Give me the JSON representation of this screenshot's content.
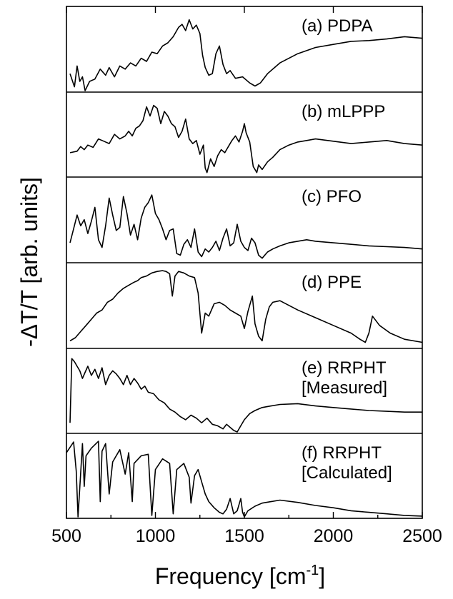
{
  "chart_data": {
    "type": "line",
    "xlabel": "Frequency [cm",
    "xlabel_sup": "-1",
    "xlabel_end": "]",
    "ylabel": "-ΔT/T [arb. units]",
    "xlim": [
      500,
      2500
    ],
    "xticks": [
      "500",
      "1000",
      "1500",
      "2000",
      "2500"
    ],
    "xtick_values": [
      500,
      1000,
      1500,
      2000,
      2500
    ],
    "grid": false,
    "panels": [
      {
        "name": "(a) PDPA",
        "label_lines": [
          "(a) PDPA"
        ],
        "x": [
          520,
          545,
          560,
          575,
          590,
          605,
          630,
          660,
          690,
          720,
          740,
          770,
          800,
          830,
          860,
          890,
          920,
          950,
          980,
          1010,
          1040,
          1070,
          1100,
          1130,
          1150,
          1170,
          1190,
          1210,
          1230,
          1250,
          1265,
          1280,
          1300,
          1320,
          1340,
          1360,
          1380,
          1400,
          1420,
          1450,
          1490,
          1530,
          1560,
          1590,
          1630,
          1700,
          1800,
          1900,
          2000,
          2100,
          2200,
          2300,
          2400,
          2500
        ],
        "y": [
          0.22,
          0.05,
          0.32,
          0.12,
          0.18,
          0.0,
          0.12,
          0.15,
          0.28,
          0.2,
          0.3,
          0.18,
          0.32,
          0.28,
          0.36,
          0.32,
          0.42,
          0.38,
          0.5,
          0.48,
          0.58,
          0.62,
          0.7,
          0.82,
          0.86,
          0.78,
          0.92,
          0.8,
          0.85,
          0.74,
          0.46,
          0.3,
          0.2,
          0.22,
          0.48,
          0.58,
          0.34,
          0.22,
          0.26,
          0.16,
          0.18,
          0.1,
          0.06,
          0.1,
          0.22,
          0.36,
          0.48,
          0.56,
          0.6,
          0.64,
          0.65,
          0.67,
          0.7,
          0.68
        ]
      },
      {
        "name": "(b) mLPPP",
        "label_lines": [
          "(b) mLPPP"
        ],
        "x": [
          520,
          560,
          580,
          600,
          620,
          650,
          680,
          710,
          740,
          770,
          800,
          830,
          850,
          870,
          890,
          910,
          930,
          950,
          970,
          990,
          1010,
          1030,
          1050,
          1070,
          1090,
          1110,
          1130,
          1150,
          1170,
          1190,
          1210,
          1230,
          1250,
          1270,
          1280,
          1290,
          1310,
          1330,
          1350,
          1370,
          1390,
          1410,
          1430,
          1450,
          1470,
          1490,
          1500,
          1510,
          1530,
          1550,
          1570,
          1580,
          1600,
          1630,
          1660,
          1700,
          1750,
          1800,
          1850,
          1900,
          2000,
          2100,
          2200,
          2300,
          2400,
          2500
        ],
        "y": [
          0.3,
          0.32,
          0.38,
          0.34,
          0.4,
          0.37,
          0.48,
          0.45,
          0.42,
          0.54,
          0.48,
          0.52,
          0.58,
          0.52,
          0.62,
          0.65,
          0.72,
          0.9,
          0.78,
          0.92,
          0.88,
          0.68,
          0.84,
          0.78,
          0.68,
          0.64,
          0.5,
          0.58,
          0.74,
          0.48,
          0.42,
          0.46,
          0.28,
          0.4,
          0.1,
          0.04,
          0.22,
          0.12,
          0.26,
          0.34,
          0.3,
          0.38,
          0.46,
          0.52,
          0.44,
          0.58,
          0.68,
          0.56,
          0.44,
          0.12,
          0.04,
          0.14,
          0.08,
          0.18,
          0.24,
          0.34,
          0.4,
          0.44,
          0.46,
          0.48,
          0.45,
          0.42,
          0.44,
          0.46,
          0.42,
          0.4
        ]
      },
      {
        "name": "(c) PFO",
        "label_lines": [
          "(c) PFO"
        ],
        "x": [
          520,
          540,
          560,
          580,
          600,
          620,
          640,
          660,
          680,
          700,
          720,
          740,
          760,
          780,
          800,
          820,
          840,
          860,
          880,
          900,
          920,
          940,
          960,
          980,
          1000,
          1020,
          1040,
          1060,
          1080,
          1100,
          1120,
          1140,
          1160,
          1180,
          1200,
          1220,
          1240,
          1260,
          1280,
          1300,
          1320,
          1340,
          1360,
          1380,
          1400,
          1420,
          1440,
          1460,
          1480,
          1500,
          1520,
          1540,
          1560,
          1580,
          1600,
          1630,
          1660,
          1700,
          1750,
          1800,
          1850,
          1900,
          2000,
          2100,
          2200,
          2300,
          2400,
          2500
        ],
        "y": [
          0.24,
          0.42,
          0.6,
          0.46,
          0.54,
          0.36,
          0.52,
          0.7,
          0.28,
          0.18,
          0.46,
          0.82,
          0.6,
          0.4,
          0.44,
          0.84,
          0.62,
          0.34,
          0.48,
          0.28,
          0.56,
          0.7,
          0.76,
          0.86,
          0.62,
          0.54,
          0.42,
          0.28,
          0.4,
          0.42,
          0.1,
          0.08,
          0.22,
          0.28,
          0.18,
          0.42,
          0.12,
          0.06,
          0.16,
          0.12,
          0.18,
          0.26,
          0.14,
          0.3,
          0.42,
          0.2,
          0.24,
          0.48,
          0.26,
          0.18,
          0.14,
          0.3,
          0.24,
          0.08,
          0.04,
          0.12,
          0.16,
          0.2,
          0.24,
          0.26,
          0.28,
          0.26,
          0.24,
          0.22,
          0.2,
          0.19,
          0.18,
          0.16
        ]
      },
      {
        "name": "(d) PPE",
        "label_lines": [
          "(d) PPE"
        ],
        "x": [
          520,
          550,
          580,
          610,
          640,
          670,
          700,
          730,
          760,
          790,
          820,
          850,
          880,
          900,
          920,
          950,
          980,
          1010,
          1040,
          1060,
          1080,
          1095,
          1110,
          1130,
          1160,
          1190,
          1220,
          1240,
          1260,
          1280,
          1300,
          1330,
          1360,
          1390,
          1420,
          1450,
          1480,
          1500,
          1520,
          1545,
          1560,
          1580,
          1600,
          1620,
          1640,
          1660,
          1700,
          1800,
          1900,
          2000,
          2100,
          2150,
          2180,
          2200,
          2220,
          2260,
          2320,
          2400,
          2500
        ],
        "y": [
          0.08,
          0.12,
          0.2,
          0.28,
          0.36,
          0.44,
          0.48,
          0.58,
          0.62,
          0.7,
          0.76,
          0.8,
          0.84,
          0.86,
          0.9,
          0.92,
          0.96,
          0.98,
          0.99,
          0.98,
          0.95,
          0.66,
          0.92,
          0.98,
          0.96,
          0.92,
          0.9,
          0.7,
          0.18,
          0.44,
          0.4,
          0.56,
          0.58,
          0.54,
          0.48,
          0.44,
          0.4,
          0.24,
          0.46,
          0.66,
          0.3,
          0.14,
          0.08,
          0.36,
          0.52,
          0.58,
          0.6,
          0.48,
          0.38,
          0.28,
          0.18,
          0.1,
          0.06,
          0.18,
          0.4,
          0.28,
          0.18,
          0.1,
          0.06
        ]
      },
      {
        "name": "(e) RRPHT [Measured]",
        "label_lines": [
          "(e) RRPHT",
          "[Measured]"
        ],
        "x": [
          520,
          530,
          545,
          560,
          575,
          590,
          605,
          620,
          640,
          660,
          680,
          700,
          720,
          740,
          760,
          780,
          800,
          820,
          840,
          860,
          880,
          900,
          920,
          940,
          960,
          990,
          1020,
          1050,
          1080,
          1110,
          1140,
          1170,
          1200,
          1230,
          1260,
          1290,
          1320,
          1350,
          1380,
          1400,
          1420,
          1440,
          1460,
          1480,
          1500,
          1530,
          1560,
          1600,
          1650,
          1700,
          1800,
          1900,
          2000,
          2100,
          2200,
          2300,
          2400,
          2500
        ],
        "y": [
          0.12,
          0.96,
          0.92,
          0.86,
          0.8,
          0.7,
          0.78,
          0.86,
          0.74,
          0.82,
          0.7,
          0.84,
          0.62,
          0.74,
          0.8,
          0.76,
          0.7,
          0.62,
          0.74,
          0.62,
          0.7,
          0.64,
          0.56,
          0.6,
          0.52,
          0.5,
          0.42,
          0.38,
          0.3,
          0.26,
          0.2,
          0.16,
          0.22,
          0.18,
          0.12,
          0.18,
          0.1,
          0.08,
          0.04,
          0.1,
          0.06,
          0.02,
          0.0,
          0.08,
          0.16,
          0.24,
          0.28,
          0.32,
          0.34,
          0.36,
          0.37,
          0.34,
          0.32,
          0.3,
          0.28,
          0.27,
          0.26,
          0.26
        ]
      },
      {
        "name": "(f) RRPHT [Calculated]",
        "label_lines": [
          "(f) RRPHT",
          "[Calculated]"
        ],
        "x": [
          500,
          540,
          555,
          565,
          590,
          600,
          610,
          640,
          680,
          690,
          700,
          720,
          740,
          760,
          800,
          830,
          850,
          870,
          880,
          920,
          960,
          980,
          1000,
          1040,
          1080,
          1100,
          1120,
          1160,
          1190,
          1200,
          1220,
          1240,
          1260,
          1280,
          1300,
          1330,
          1360,
          1380,
          1400,
          1420,
          1440,
          1460,
          1480,
          1490,
          1500,
          1520,
          1560,
          1600,
          1650,
          1700,
          1800,
          1900,
          2000,
          2100,
          2200,
          2300,
          2400,
          2500
        ],
        "y": [
          0.84,
          0.98,
          0.6,
          0.0,
          0.96,
          0.4,
          0.8,
          0.9,
          0.99,
          0.2,
          0.86,
          0.96,
          0.3,
          0.72,
          0.88,
          0.56,
          0.84,
          0.2,
          0.7,
          0.8,
          0.82,
          0.02,
          0.62,
          0.76,
          0.7,
          0.04,
          0.62,
          0.7,
          0.52,
          0.18,
          0.54,
          0.62,
          0.46,
          0.3,
          0.2,
          0.12,
          0.06,
          0.04,
          0.1,
          0.24,
          0.04,
          0.08,
          0.24,
          0.06,
          0.0,
          0.08,
          0.14,
          0.18,
          0.2,
          0.22,
          0.19,
          0.15,
          0.12,
          0.08,
          0.06,
          0.04,
          0.02,
          0.01
        ]
      }
    ]
  }
}
